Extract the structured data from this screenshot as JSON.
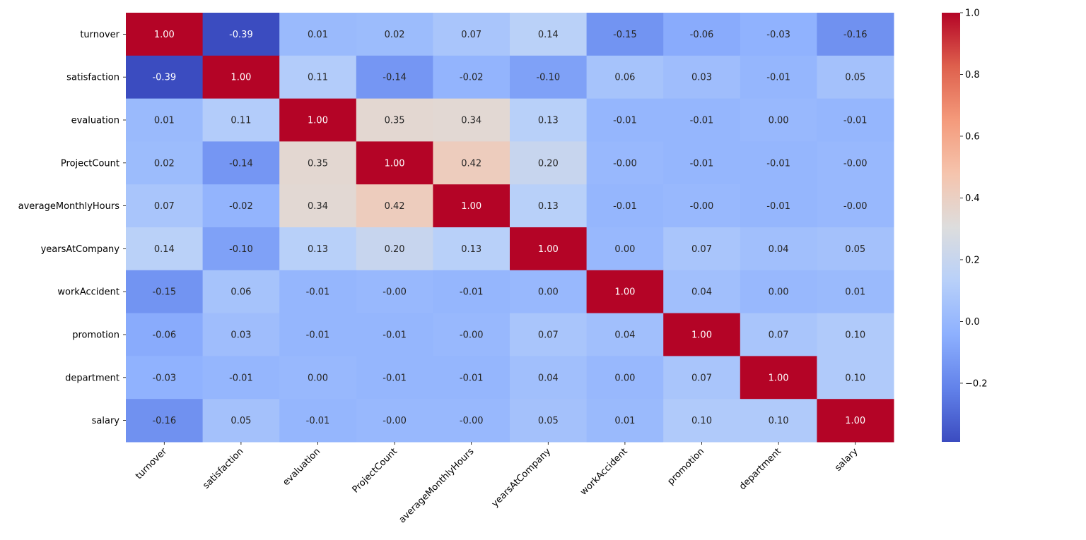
{
  "chart_data": {
    "type": "heatmap",
    "title": "",
    "xlabel": "",
    "ylabel": "",
    "x_categories": [
      "turnover",
      "satisfaction",
      "evaluation",
      "ProjectCount",
      "averageMonthlyHours",
      "yearsAtCompany",
      "workAccident",
      "promotion",
      "department",
      "salary"
    ],
    "y_categories": [
      "turnover",
      "satisfaction",
      "evaluation",
      "ProjectCount",
      "averageMonthlyHours",
      "yearsAtCompany",
      "workAccident",
      "promotion",
      "department",
      "salary"
    ],
    "values": [
      [
        1.0,
        -0.39,
        0.01,
        0.02,
        0.07,
        0.14,
        -0.15,
        -0.06,
        -0.03,
        -0.16
      ],
      [
        -0.39,
        1.0,
        0.11,
        -0.14,
        -0.02,
        -0.1,
        0.06,
        0.03,
        -0.01,
        0.05
      ],
      [
        0.01,
        0.11,
        1.0,
        0.35,
        0.34,
        0.13,
        -0.01,
        -0.01,
        0.0,
        -0.01
      ],
      [
        0.02,
        -0.14,
        0.35,
        1.0,
        0.42,
        0.2,
        -0.0,
        -0.01,
        -0.01,
        -0.0
      ],
      [
        0.07,
        -0.02,
        0.34,
        0.42,
        1.0,
        0.13,
        -0.01,
        -0.0,
        -0.01,
        -0.0
      ],
      [
        0.14,
        -0.1,
        0.13,
        0.2,
        0.13,
        1.0,
        0.0,
        0.07,
        0.04,
        0.05
      ],
      [
        -0.15,
        0.06,
        -0.01,
        -0.0,
        -0.01,
        0.0,
        1.0,
        0.04,
        0.0,
        0.01
      ],
      [
        -0.06,
        0.03,
        -0.01,
        -0.01,
        -0.0,
        0.07,
        0.04,
        1.0,
        0.07,
        0.1
      ],
      [
        -0.03,
        -0.01,
        0.0,
        -0.01,
        -0.01,
        0.04,
        0.0,
        0.07,
        1.0,
        0.1
      ],
      [
        -0.16,
        0.05,
        -0.01,
        -0.0,
        -0.0,
        0.05,
        0.01,
        0.1,
        0.1,
        1.0
      ]
    ],
    "annotation_format": "0.00",
    "colormap": "coolwarm",
    "vmin": -0.39,
    "vmax": 1.0,
    "colorbar": {
      "ticks": [
        -0.2,
        0.0,
        0.2,
        0.4,
        0.6,
        0.8,
        1.0
      ],
      "tick_labels": [
        "−0.2",
        "0.0",
        "0.2",
        "0.4",
        "0.6",
        "0.8",
        "1.0"
      ],
      "placement": "right"
    },
    "x_tick_rotation_deg": 45,
    "grid": false
  }
}
